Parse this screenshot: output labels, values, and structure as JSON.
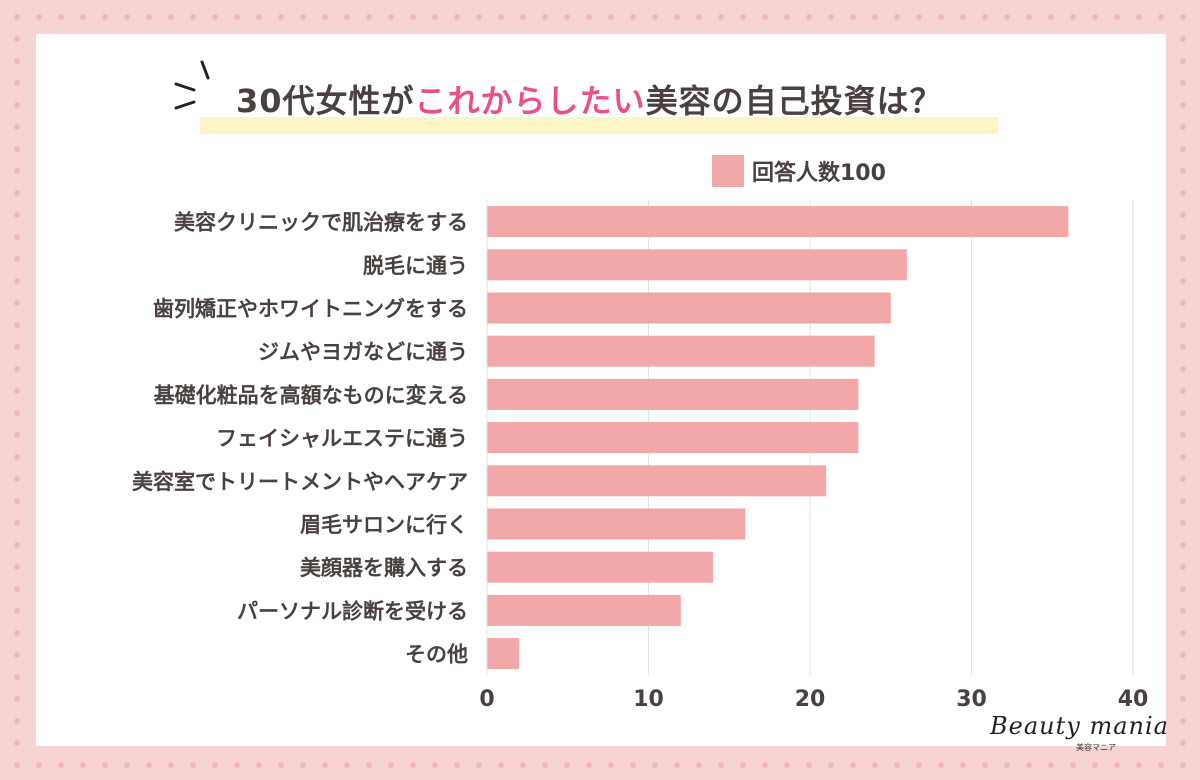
{
  "header": {
    "title_prefix": "30代女性が",
    "title_accent": "これからしたい",
    "title_suffix": "美容の自己投資は？"
  },
  "legend": {
    "label": "回答人数100"
  },
  "logo": {
    "text": "Beauty mania",
    "sub": "美容マニア"
  },
  "colors": {
    "bar": "#f2a7a8",
    "accent": "#ea4f8c",
    "highlight": "#fdf5c6",
    "text": "#4a4040"
  },
  "chart_data": {
    "type": "bar",
    "orientation": "horizontal",
    "categories": [
      "美容クリニックで肌治療をする",
      "脱毛に通う",
      "歯列矯正やホワイトニングをする",
      "ジムやヨガなどに通う",
      "基礎化粧品を高額なものに変える",
      "フェイシャルエステに通う",
      "美容室でトリートメントやヘアケア",
      "眉毛サロンに行く",
      "美顔器を購入する",
      "パーソナル診断を受ける",
      "その他"
    ],
    "series": [
      {
        "name": "回答人数100",
        "values": [
          36,
          26,
          25,
          24,
          23,
          23,
          21,
          16,
          14,
          12,
          2
        ]
      }
    ],
    "xlim": [
      0,
      40
    ],
    "xticks": [
      0,
      10,
      20,
      30,
      40
    ],
    "grid": true,
    "legend_position": "top-right"
  }
}
